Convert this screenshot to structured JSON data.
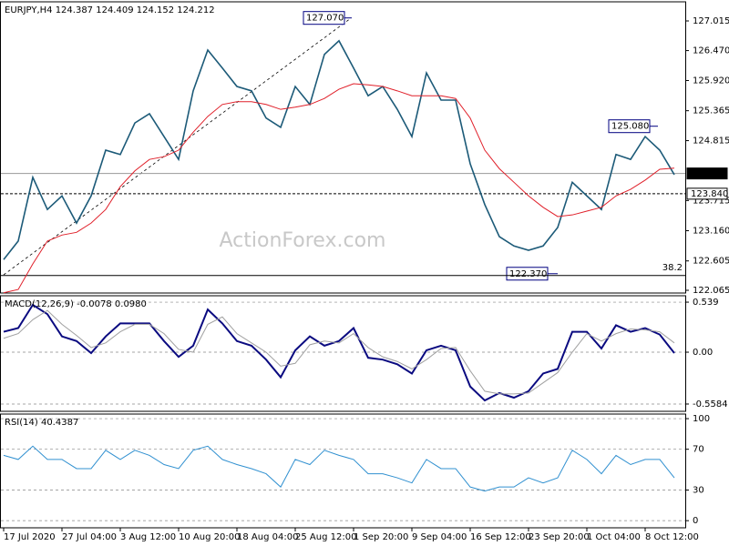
{
  "chart_data": [
    {
      "type": "line",
      "title": "EURJPY,H4  124.387 124.409 124.152 124.212",
      "ylim": [
        122.015,
        127.366
      ],
      "yticks": [
        127.015,
        {
          "value": 126.47,
          "label": "126.470"
        },
        {
          "value": 125.92,
          "label": "125.920"
        },
        125.365,
        124.815,
        123.715,
        {
          "value": 123.16,
          "label": "123.160"
        },
        122.605,
        122.065
      ],
      "grid": false,
      "series": [
        {
          "color": "#1c5a78",
          "values": [
            122.63,
            122.97,
            124.14,
            123.55,
            123.8,
            123.3,
            123.8,
            124.64,
            124.56,
            125.14,
            125.31,
            124.89,
            124.47,
            125.73,
            126.48,
            126.15,
            125.81,
            125.73,
            125.23,
            125.06,
            125.81,
            125.48,
            126.4,
            126.65,
            126.15,
            125.64,
            125.81,
            125.39,
            124.89,
            126.06,
            125.56,
            125.56,
            124.39,
            123.64,
            123.05,
            122.88,
            122.8,
            122.88,
            123.22,
            124.05,
            123.8,
            123.55,
            124.56,
            124.47,
            124.89,
            124.64,
            124.19
          ]
        },
        {
          "color": "#e0202a",
          "values": [
            122.02,
            122.08,
            122.55,
            122.97,
            123.08,
            123.13,
            123.3,
            123.55,
            123.97,
            124.26,
            124.47,
            124.52,
            124.64,
            124.97,
            125.26,
            125.48,
            125.53,
            125.53,
            125.48,
            125.39,
            125.43,
            125.48,
            125.59,
            125.76,
            125.86,
            125.84,
            125.81,
            125.73,
            125.64,
            125.64,
            125.64,
            125.59,
            125.23,
            124.64,
            124.3,
            124.05,
            123.8,
            123.59,
            123.42,
            123.45,
            123.52,
            123.59,
            123.8,
            123.92,
            124.09,
            124.29,
            124.31
          ]
        }
      ],
      "price_labels": [
        124.212,
        {
          "value": 123.84,
          "label": "123.840"
        }
      ],
      "annotations": [
        {
          "value": 127.07,
          "label": "127.070"
        },
        {
          "value": 125.08,
          "label": "125.080"
        },
        {
          "value": 122.37,
          "label": "122.370"
        }
      ],
      "fib_label": "38.2",
      "watermark": "ActionForex.com"
    },
    {
      "type": "line",
      "title": "MACD(12,26,9) -0.0078 0.0980",
      "ylim": [
        -0.637,
        0.608
      ],
      "yticks": [
        0.539,
        {
          "value": 0,
          "label": "0.00"
        },
        -0.5584
      ],
      "grid": true,
      "series": [
        {
          "color": "#0a0a80",
          "values": [
            0.22,
            0.26,
            0.51,
            0.41,
            0.17,
            0.12,
            -0.01,
            0.17,
            0.31,
            0.31,
            0.31,
            0.12,
            -0.05,
            0.07,
            0.46,
            0.31,
            0.12,
            0.07,
            -0.08,
            -0.27,
            0.02,
            0.17,
            0.07,
            0.12,
            0.26,
            -0.06,
            -0.08,
            -0.13,
            -0.23,
            0.02,
            0.07,
            0.02,
            -0.37,
            -0.52,
            -0.44,
            -0.49,
            -0.42,
            -0.23,
            -0.18,
            0.22,
            0.22,
            0.04,
            0.29,
            0.22,
            0.26,
            0.19,
            -0.01
          ]
        },
        {
          "color": "#a0a0a0",
          "values": [
            0.15,
            0.2,
            0.35,
            0.45,
            0.3,
            0.18,
            0.05,
            0.1,
            0.22,
            0.3,
            0.3,
            0.2,
            0.03,
            0.0,
            0.3,
            0.38,
            0.2,
            0.1,
            0.0,
            -0.15,
            -0.12,
            0.08,
            0.12,
            0.1,
            0.2,
            0.05,
            -0.05,
            -0.1,
            -0.18,
            -0.08,
            0.04,
            0.05,
            -0.2,
            -0.42,
            -0.45,
            -0.45,
            -0.44,
            -0.33,
            -0.22,
            0.0,
            0.2,
            0.12,
            0.2,
            0.25,
            0.24,
            0.22,
            0.1
          ]
        }
      ]
    },
    {
      "type": "line",
      "title": "RSI(14) 40.4387",
      "ylim": [
        -7,
        104.5
      ],
      "yticks": [
        100,
        70,
        30,
        0
      ],
      "grid": true,
      "categories": [
        "17 Jul 2020",
        null,
        null,
        null,
        "27 Jul 04:00",
        null,
        null,
        null,
        "3 Aug 12:00",
        null,
        null,
        null,
        "10 Aug 20:00",
        null,
        null,
        null,
        "18 Aug 04:00",
        null,
        null,
        null,
        "25 Aug 12:00",
        null,
        null,
        null,
        "1 Sep 20:00",
        null,
        null,
        null,
        "9 Sep 04:00",
        null,
        null,
        null,
        "16 Sep 12:00",
        null,
        null,
        null,
        "23 Sep 20:00",
        null,
        null,
        null,
        "1 Oct 04:00",
        null,
        null,
        null,
        "8 Oct 12:00",
        null,
        null
      ],
      "series": [
        {
          "color": "#3090d0",
          "values": [
            64,
            60,
            73,
            60,
            60,
            51,
            51,
            69,
            60,
            69,
            64,
            55,
            51,
            69,
            73,
            60,
            55,
            51,
            46,
            33,
            60,
            55,
            69,
            64,
            60,
            46,
            46,
            42,
            37,
            60,
            51,
            51,
            33,
            29,
            33,
            33,
            42,
            37,
            42,
            69,
            60,
            46,
            64,
            55,
            60,
            60,
            42
          ]
        }
      ]
    }
  ]
}
